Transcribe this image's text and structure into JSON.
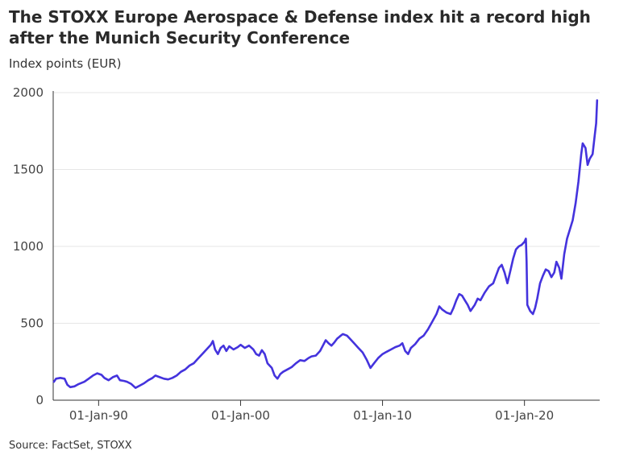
{
  "header": {
    "title": "The STOXX Europe Aerospace & Defense index hit a record high after the Munich Security Conference",
    "subtitle": "Index points (EUR)"
  },
  "footer": {
    "source": "Source: FactSet, STOXX"
  },
  "colors": {
    "line": "#4433dd",
    "grid": "#e6e6e6",
    "axis": "#333333"
  },
  "chart_data": {
    "type": "line",
    "title": "The STOXX Europe Aerospace & Defense index hit a record high after the Munich Security Conference",
    "ylabel": "Index points (EUR)",
    "xlabel": "",
    "ylim": [
      0,
      2000
    ],
    "xlim": [
      1986.8,
      2025.3
    ],
    "yticks": [
      0,
      500,
      1000,
      1500,
      2000
    ],
    "xticks": [
      {
        "label": "01-Jan-90",
        "value": 1990
      },
      {
        "label": "01-Jan-00",
        "value": 2000
      },
      {
        "label": "01-Jan-10",
        "value": 2010
      },
      {
        "label": "01-Jan-20",
        "value": 2020
      }
    ],
    "grid": true,
    "series": [
      {
        "points": [
          [
            1986.85,
            120
          ],
          [
            1987.0,
            140
          ],
          [
            1987.3,
            145
          ],
          [
            1987.6,
            140
          ],
          [
            1987.8,
            100
          ],
          [
            1988.0,
            85
          ],
          [
            1988.3,
            90
          ],
          [
            1988.6,
            105
          ],
          [
            1989.0,
            120
          ],
          [
            1989.3,
            140
          ],
          [
            1989.6,
            160
          ],
          [
            1989.9,
            175
          ],
          [
            1990.2,
            165
          ],
          [
            1990.4,
            145
          ],
          [
            1990.7,
            130
          ],
          [
            1991.0,
            150
          ],
          [
            1991.3,
            160
          ],
          [
            1991.5,
            130
          ],
          [
            1991.8,
            125
          ],
          [
            1992.0,
            120
          ],
          [
            1992.3,
            105
          ],
          [
            1992.6,
            80
          ],
          [
            1992.9,
            95
          ],
          [
            1993.2,
            110
          ],
          [
            1993.5,
            130
          ],
          [
            1993.8,
            145
          ],
          [
            1994.0,
            160
          ],
          [
            1994.3,
            150
          ],
          [
            1994.6,
            140
          ],
          [
            1994.9,
            135
          ],
          [
            1995.2,
            145
          ],
          [
            1995.5,
            160
          ],
          [
            1995.8,
            185
          ],
          [
            1996.1,
            200
          ],
          [
            1996.4,
            225
          ],
          [
            1996.7,
            240
          ],
          [
            1997.0,
            270
          ],
          [
            1997.3,
            300
          ],
          [
            1997.6,
            330
          ],
          [
            1997.9,
            360
          ],
          [
            1998.05,
            385
          ],
          [
            1998.2,
            330
          ],
          [
            1998.4,
            300
          ],
          [
            1998.6,
            340
          ],
          [
            1998.8,
            355
          ],
          [
            1999.0,
            320
          ],
          [
            1999.2,
            350
          ],
          [
            1999.5,
            330
          ],
          [
            1999.8,
            345
          ],
          [
            2000.0,
            360
          ],
          [
            2000.3,
            340
          ],
          [
            2000.6,
            355
          ],
          [
            2000.9,
            330
          ],
          [
            2001.1,
            300
          ],
          [
            2001.3,
            290
          ],
          [
            2001.5,
            325
          ],
          [
            2001.7,
            300
          ],
          [
            2001.9,
            240
          ],
          [
            2002.2,
            210
          ],
          [
            2002.4,
            160
          ],
          [
            2002.6,
            140
          ],
          [
            2002.8,
            170
          ],
          [
            2003.0,
            185
          ],
          [
            2003.3,
            200
          ],
          [
            2003.6,
            215
          ],
          [
            2003.9,
            240
          ],
          [
            2004.2,
            260
          ],
          [
            2004.5,
            255
          ],
          [
            2004.8,
            275
          ],
          [
            2005.0,
            285
          ],
          [
            2005.3,
            290
          ],
          [
            2005.6,
            320
          ],
          [
            2005.8,
            355
          ],
          [
            2006.0,
            390
          ],
          [
            2006.2,
            370
          ],
          [
            2006.4,
            355
          ],
          [
            2006.6,
            375
          ],
          [
            2006.8,
            400
          ],
          [
            2007.0,
            415
          ],
          [
            2007.2,
            430
          ],
          [
            2007.5,
            420
          ],
          [
            2007.7,
            400
          ],
          [
            2008.0,
            370
          ],
          [
            2008.3,
            340
          ],
          [
            2008.6,
            310
          ],
          [
            2008.9,
            260
          ],
          [
            2009.15,
            210
          ],
          [
            2009.4,
            240
          ],
          [
            2009.7,
            275
          ],
          [
            2010.0,
            300
          ],
          [
            2010.3,
            315
          ],
          [
            2010.6,
            330
          ],
          [
            2010.9,
            345
          ],
          [
            2011.2,
            355
          ],
          [
            2011.4,
            370
          ],
          [
            2011.6,
            320
          ],
          [
            2011.8,
            300
          ],
          [
            2012.0,
            340
          ],
          [
            2012.3,
            365
          ],
          [
            2012.6,
            400
          ],
          [
            2012.9,
            420
          ],
          [
            2013.2,
            460
          ],
          [
            2013.5,
            510
          ],
          [
            2013.8,
            560
          ],
          [
            2014.0,
            610
          ],
          [
            2014.2,
            590
          ],
          [
            2014.5,
            570
          ],
          [
            2014.8,
            560
          ],
          [
            2015.0,
            600
          ],
          [
            2015.2,
            650
          ],
          [
            2015.4,
            690
          ],
          [
            2015.6,
            680
          ],
          [
            2015.8,
            650
          ],
          [
            2016.0,
            620
          ],
          [
            2016.2,
            580
          ],
          [
            2016.5,
            620
          ],
          [
            2016.7,
            660
          ],
          [
            2016.9,
            650
          ],
          [
            2017.2,
            700
          ],
          [
            2017.5,
            740
          ],
          [
            2017.8,
            760
          ],
          [
            2018.0,
            810
          ],
          [
            2018.2,
            860
          ],
          [
            2018.4,
            880
          ],
          [
            2018.6,
            830
          ],
          [
            2018.8,
            760
          ],
          [
            2019.0,
            840
          ],
          [
            2019.2,
            920
          ],
          [
            2019.4,
            980
          ],
          [
            2019.6,
            1000
          ],
          [
            2019.8,
            1010
          ],
          [
            2020.0,
            1030
          ],
          [
            2020.1,
            1050
          ],
          [
            2020.15,
            900
          ],
          [
            2020.2,
            620
          ],
          [
            2020.4,
            580
          ],
          [
            2020.6,
            560
          ],
          [
            2020.75,
            600
          ],
          [
            2020.9,
            660
          ],
          [
            2021.1,
            760
          ],
          [
            2021.3,
            810
          ],
          [
            2021.5,
            850
          ],
          [
            2021.7,
            840
          ],
          [
            2021.9,
            800
          ],
          [
            2022.1,
            830
          ],
          [
            2022.25,
            900
          ],
          [
            2022.45,
            860
          ],
          [
            2022.6,
            790
          ],
          [
            2022.8,
            950
          ],
          [
            2023.0,
            1050
          ],
          [
            2023.2,
            1110
          ],
          [
            2023.4,
            1170
          ],
          [
            2023.6,
            1280
          ],
          [
            2023.8,
            1420
          ],
          [
            2024.0,
            1600
          ],
          [
            2024.1,
            1670
          ],
          [
            2024.3,
            1640
          ],
          [
            2024.45,
            1530
          ],
          [
            2024.6,
            1570
          ],
          [
            2024.8,
            1600
          ],
          [
            2024.95,
            1720
          ],
          [
            2025.05,
            1800
          ],
          [
            2025.12,
            1950
          ]
        ]
      }
    ]
  }
}
